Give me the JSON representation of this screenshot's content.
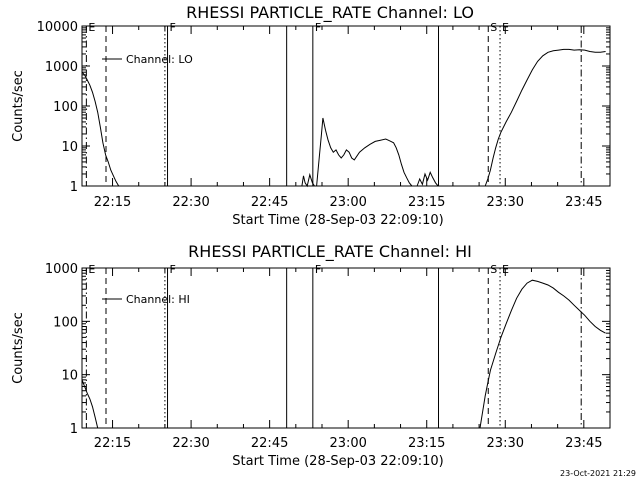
{
  "timestamp": "23-Oct-2021 21:29",
  "chart_data": [
    {
      "type": "line",
      "title": "RHESSI PARTICLE_RATE Channel: LO",
      "xlabel": "Start Time (28-Sep-03 22:09:10)",
      "ylabel": "Counts/sec",
      "yscale": "log",
      "ylim": [
        1,
        10000
      ],
      "xlim": [
        "22:09:10",
        "23:50:00"
      ],
      "x_ticks": [
        "22:15",
        "22:30",
        "22:45",
        "23:00",
        "23:15",
        "23:30",
        "23:45"
      ],
      "y_ticks": [
        "1",
        "10",
        "100",
        "1000",
        "10000"
      ],
      "legend": "Channel: LO",
      "event_markers": [
        {
          "label": "E",
          "time": "22:10:00",
          "style": "dashdot"
        },
        {
          "label": "",
          "time": "22:13:45",
          "style": "dashed"
        },
        {
          "label": "",
          "time": "22:25:00",
          "style": "dotted"
        },
        {
          "label": "F",
          "time": "22:25:30",
          "style": "solid"
        },
        {
          "label": "",
          "time": "22:48:15",
          "style": "solid"
        },
        {
          "label": "F",
          "time": "22:53:15",
          "style": "solid"
        },
        {
          "label": "",
          "time": "23:17:15",
          "style": "solid"
        },
        {
          "label": "S",
          "time": "23:26:45",
          "style": "dashed"
        },
        {
          "label": "E",
          "time": "23:29:00",
          "style": "dotted"
        },
        {
          "label": "",
          "time": "23:44:30",
          "style": "dashdot"
        }
      ],
      "series": [
        {
          "name": "Channel: LO",
          "segments": [
            {
              "t": [
                0.0,
                0.5,
                1.0,
                1.5,
                2.0,
                2.5,
                3.0,
                3.5,
                4.0,
                4.5,
                5.0,
                5.5,
                6.0,
                6.5,
                7.0
              ],
              "y": [
                700,
                600,
                450,
                330,
                220,
                130,
                70,
                30,
                12,
                6,
                4,
                2.5,
                1.8,
                1.3,
                1.0
              ]
            },
            {
              "t": [
                42.0,
                42.3,
                42.6,
                43.0,
                43.5,
                44.0,
                44.4
              ],
              "y": [
                1.0,
                1.8,
                1.2,
                1.0,
                1.9,
                1.2,
                1.0
              ]
            },
            {
              "t": [
                44.8,
                45.3,
                45.7,
                46.0,
                46.5,
                47.0,
                47.5,
                48.0,
                48.5,
                49.0,
                49.5,
                50.0,
                50.5,
                51.0,
                51.5,
                52.0,
                53.0,
                54.0,
                55.0,
                56.0,
                57.0,
                58.0,
                58.5,
                59.0,
                59.5,
                60.0,
                60.5,
                61.0,
                61.5,
                62.0,
                62.5,
                63.0
              ],
              "y": [
                1.0,
                5,
                18,
                50,
                25,
                14,
                9,
                7,
                8,
                6,
                5,
                6,
                8,
                7,
                5,
                4.5,
                7,
                9,
                11,
                13,
                14,
                15,
                14,
                13,
                12,
                9,
                6,
                3.5,
                2.2,
                1.6,
                1.2,
                1.0
              ]
            },
            {
              "t": [
                64.0,
                64.5,
                65.0,
                65.5,
                66.0,
                66.5,
                67.0,
                67.5,
                68.0
              ],
              "y": [
                1.0,
                1.5,
                1.1,
                2.0,
                1.4,
                2.2,
                1.6,
                1.2,
                1.0
              ]
            },
            {
              "t": [
                77.0,
                77.5,
                78.0,
                78.5,
                79.0,
                79.5,
                80.0,
                81.0,
                82.0,
                83.0,
                84.0,
                85.0,
                86.0,
                87.0,
                88.0,
                89.0,
                90.0,
                91.0,
                92.0,
                93.0,
                94.0,
                95.0,
                96.0,
                97.0,
                98.0,
                99.0,
                100.0
              ],
              "y": [
                1.0,
                1.5,
                2.5,
                5,
                9,
                15,
                22,
                40,
                70,
                130,
                250,
                450,
                800,
                1300,
                1800,
                2200,
                2400,
                2500,
                2600,
                2600,
                2500,
                2550,
                2500,
                2300,
                2200,
                2200,
                2300
              ]
            }
          ]
        }
      ]
    },
    {
      "type": "line",
      "title": "RHESSI PARTICLE_RATE Channel: HI",
      "xlabel": "Start Time (28-Sep-03 22:09:10)",
      "ylabel": "Counts/sec",
      "yscale": "log",
      "ylim": [
        1,
        1000
      ],
      "xlim": [
        "22:09:10",
        "23:50:00"
      ],
      "x_ticks": [
        "22:15",
        "22:30",
        "22:45",
        "23:00",
        "23:15",
        "23:30",
        "23:45"
      ],
      "y_ticks": [
        "1",
        "10",
        "100",
        "1000"
      ],
      "legend": "Channel: HI",
      "event_markers": [
        {
          "label": "E",
          "time": "22:10:00",
          "style": "dashdot"
        },
        {
          "label": "",
          "time": "22:13:45",
          "style": "dashed"
        },
        {
          "label": "",
          "time": "22:25:00",
          "style": "dotted"
        },
        {
          "label": "F",
          "time": "22:25:30",
          "style": "solid"
        },
        {
          "label": "",
          "time": "22:48:15",
          "style": "solid"
        },
        {
          "label": "F",
          "time": "22:53:15",
          "style": "solid"
        },
        {
          "label": "",
          "time": "23:17:15",
          "style": "solid"
        },
        {
          "label": "S",
          "time": "23:26:45",
          "style": "dashed"
        },
        {
          "label": "E",
          "time": "23:29:00",
          "style": "dotted"
        },
        {
          "label": "",
          "time": "23:44:30",
          "style": "dashdot"
        }
      ],
      "series": [
        {
          "name": "Channel: HI",
          "segments": [
            {
              "t": [
                0.0,
                0.5,
                1.0,
                1.5,
                2.0,
                2.5,
                3.0
              ],
              "y": [
                8,
                6,
                4.5,
                3.5,
                2.5,
                1.6,
                1.0
              ]
            },
            {
              "t": [
                76.0,
                76.5,
                77.0,
                77.5,
                78.0,
                79.0,
                80.0,
                81.0,
                82.0,
                83.0,
                84.0,
                85.0,
                86.0,
                87.0,
                88.0,
                89.0,
                90.0,
                91.0,
                92.0,
                93.0,
                94.0,
                95.0,
                96.0,
                97.0,
                98.0,
                99.0,
                100.0
              ],
              "y": [
                1.0,
                2,
                4,
                7,
                12,
                25,
                50,
                90,
                160,
                270,
                400,
                520,
                590,
                560,
                520,
                480,
                420,
                350,
                300,
                250,
                200,
                160,
                130,
                100,
                80,
                68,
                60
              ]
            }
          ]
        }
      ]
    }
  ]
}
